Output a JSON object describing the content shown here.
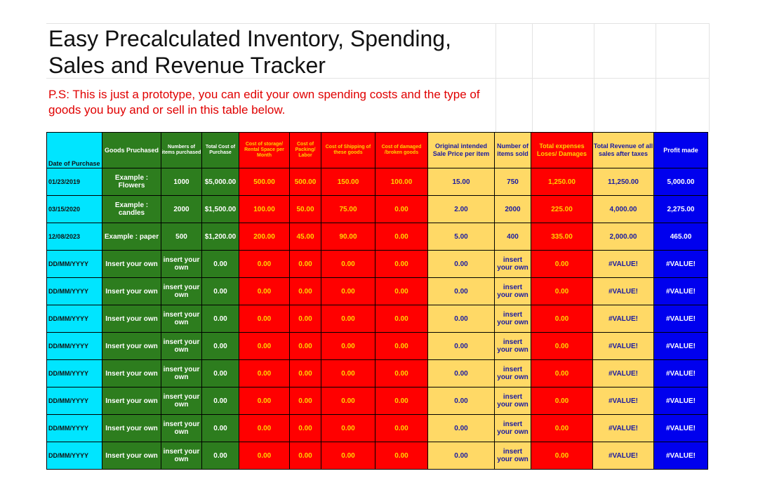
{
  "title": "Easy Precalculated Inventory, Spending, Sales and Revenue Tracker",
  "note": "P.S: This is just a prototype, you can edit your own spending costs and the type of goods you buy and or sell in this table below.",
  "colors": {
    "date": "#00e5ff",
    "green": "#2d7d1e",
    "red": "#ff0000",
    "yellow": "#ffd966",
    "blue": "#0000ee",
    "note": "#e00000"
  },
  "headers": [
    "Date of Purchase",
    "Goods Pruchased",
    "Numbers of items purchased",
    "Total Cost of Purchase",
    "Cost of storage/ Rental Space per Month",
    "Cost of Packing/ Labor",
    "Cost of Shipping of these goods",
    "Cost of damaged /broken goods",
    "Original intended Sale Price per item",
    "Number of items sold",
    "Total expenses Loses/ Damages",
    "Total Revenue of all sales after taxes",
    "Profit made"
  ],
  "rows": [
    [
      "01/23/2019",
      "Example : Flowers",
      "1000",
      "$5,000.00",
      "500.00",
      "500.00",
      "150.00",
      "100.00",
      "15.00",
      "750",
      "1,250.00",
      "11,250.00",
      "5,000.00"
    ],
    [
      "03/15/2020",
      "Example : candles",
      "2000",
      "$1,500.00",
      "100.00",
      "50.00",
      "75.00",
      "0.00",
      "2.00",
      "2000",
      "225.00",
      "4,000.00",
      "2,275.00"
    ],
    [
      "12/08/2023",
      "Example : paper",
      "500",
      "$1,200.00",
      "200.00",
      "45.00",
      "90.00",
      "0.00",
      "5.00",
      "400",
      "335.00",
      "2,000.00",
      "465.00"
    ],
    [
      "DD/MM/YYYY",
      "Insert your own",
      "insert your own",
      "0.00",
      "0.00",
      "0.00",
      "0.00",
      "0.00",
      "0.00",
      "insert your own",
      "0.00",
      "#VALUE!",
      "#VALUE!"
    ],
    [
      "DD/MM/YYYY",
      "Insert your own",
      "insert your own",
      "0.00",
      "0.00",
      "0.00",
      "0.00",
      "0.00",
      "0.00",
      "insert your own",
      "0.00",
      "#VALUE!",
      "#VALUE!"
    ],
    [
      "DD/MM/YYYY",
      "Insert your own",
      "insert your own",
      "0.00",
      "0.00",
      "0.00",
      "0.00",
      "0.00",
      "0.00",
      "insert your own",
      "0.00",
      "#VALUE!",
      "#VALUE!"
    ],
    [
      "DD/MM/YYYY",
      "Insert your own",
      "insert your own",
      "0.00",
      "0.00",
      "0.00",
      "0.00",
      "0.00",
      "0.00",
      "insert your own",
      "0.00",
      "#VALUE!",
      "#VALUE!"
    ],
    [
      "DD/MM/YYYY",
      "Insert your own",
      "insert your own",
      "0.00",
      "0.00",
      "0.00",
      "0.00",
      "0.00",
      "0.00",
      "insert your own",
      "0.00",
      "#VALUE!",
      "#VALUE!"
    ],
    [
      "DD/MM/YYYY",
      "Insert your own",
      "insert your own",
      "0.00",
      "0.00",
      "0.00",
      "0.00",
      "0.00",
      "0.00",
      "insert your own",
      "0.00",
      "#VALUE!",
      "#VALUE!"
    ],
    [
      "DD/MM/YYYY",
      "Insert your own",
      "insert your own",
      "0.00",
      "0.00",
      "0.00",
      "0.00",
      "0.00",
      "0.00",
      "insert your own",
      "0.00",
      "#VALUE!",
      "#VALUE!"
    ],
    [
      "DD/MM/YYYY",
      "Insert your own",
      "insert your own",
      "0.00",
      "0.00",
      "0.00",
      "0.00",
      "0.00",
      "0.00",
      "insert your own",
      "0.00",
      "#VALUE!",
      "#VALUE!"
    ]
  ]
}
